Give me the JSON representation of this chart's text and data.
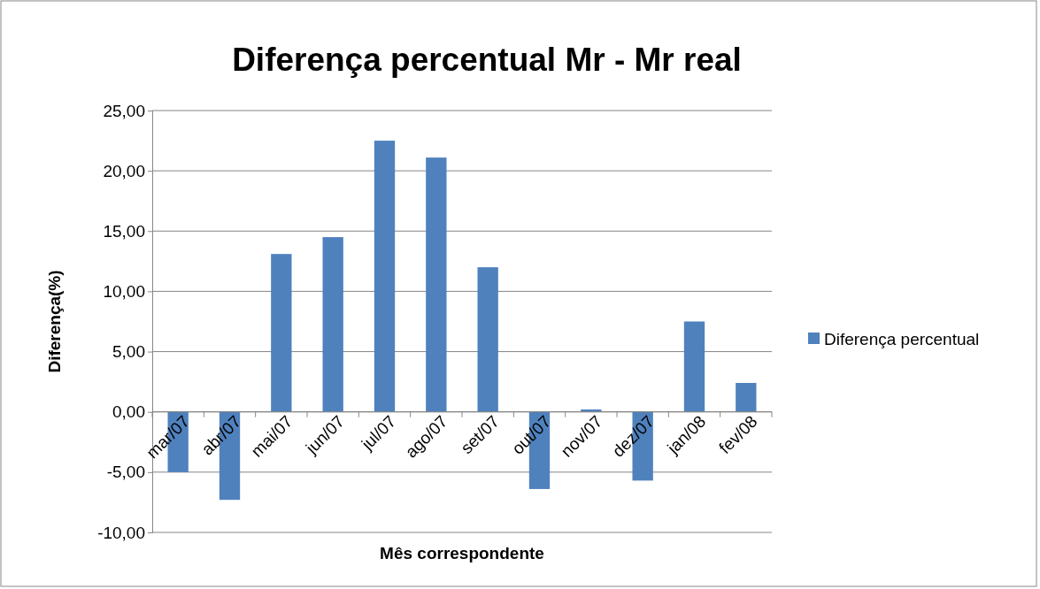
{
  "chart_data": {
    "type": "bar",
    "title": "Diferença percentual Mr - Mr real",
    "xlabel": "Mês correspondente",
    "ylabel": "Diferença(%)",
    "categories": [
      "mar/07",
      "abr/07",
      "mai/07",
      "jun/07",
      "jul/07",
      "ago/07",
      "set/07",
      "out/07",
      "nov/07",
      "dez/07",
      "jan/08",
      "fev/08"
    ],
    "series": [
      {
        "name": "Diferença percentual",
        "color": "#4f81bd",
        "values": [
          -5.0,
          -7.3,
          13.1,
          14.5,
          22.5,
          21.1,
          12.0,
          -6.4,
          0.2,
          -5.7,
          7.5,
          2.4
        ]
      }
    ],
    "ylim": [
      -10,
      25
    ],
    "yticks": [
      {
        "value": -10,
        "label": "-10,00"
      },
      {
        "value": -5,
        "label": "-5,00"
      },
      {
        "value": 0,
        "label": "0,00"
      },
      {
        "value": 5,
        "label": "5,00"
      },
      {
        "value": 10,
        "label": "10,00"
      },
      {
        "value": 15,
        "label": "15,00"
      },
      {
        "value": 20,
        "label": "20,00"
      },
      {
        "value": 25,
        "label": "25,00"
      }
    ],
    "grid": "y",
    "legend": "right"
  }
}
